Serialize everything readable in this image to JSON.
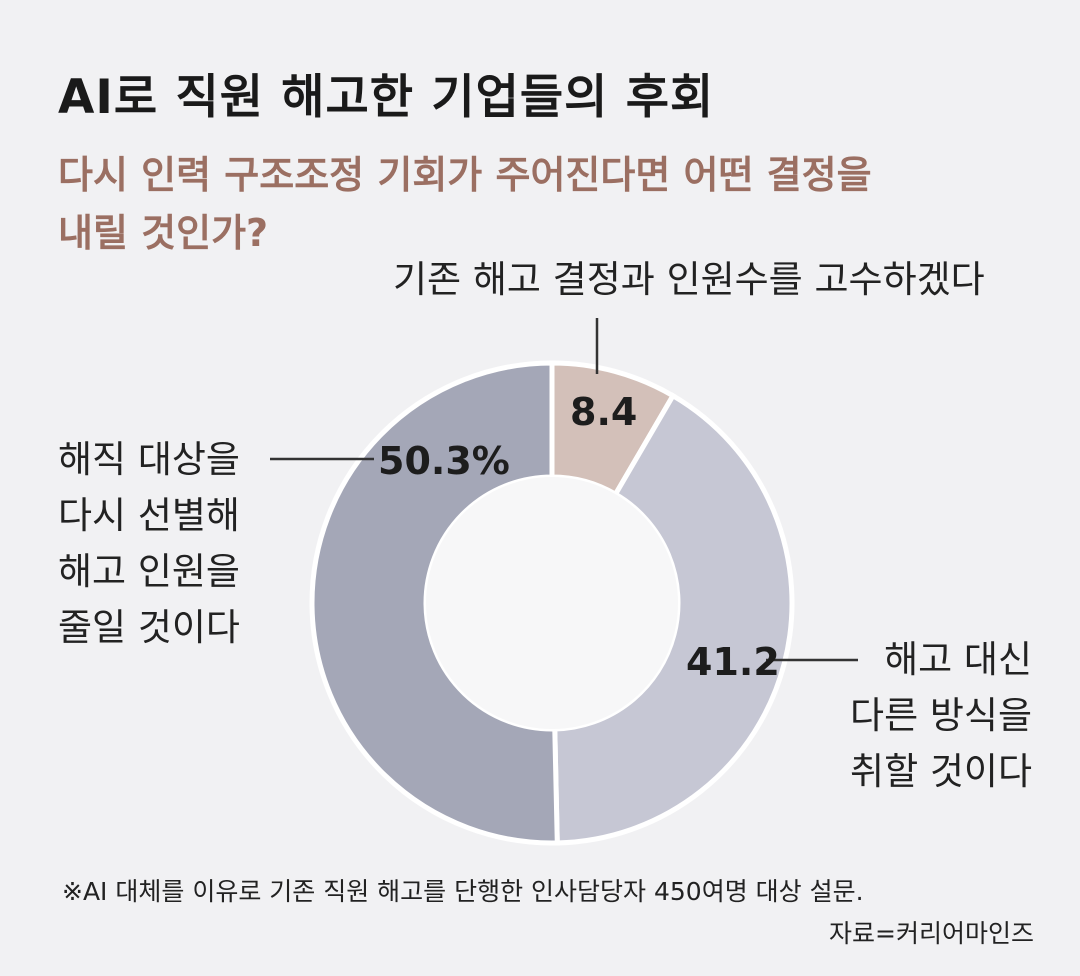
{
  "title": "AI로 직원 해고한 기업들의 후회",
  "subtitle": [
    "다시 인력 구조조정 기회가 주어진다면 어떤 결정을",
    "내릴 것인가?"
  ],
  "chart_data": {
    "type": "pie",
    "variant": "donut",
    "categories": [
      "기존 해고 결정과 인원수를 고수하겠다",
      "해고 대신 다른 방식을 취할 것이다",
      "해직 대상을 다시 선별해 해고 인원을 줄일 것이다"
    ],
    "values": [
      8.4,
      41.2,
      50.3
    ],
    "value_labels": [
      "8.4",
      "41.2",
      "50.3%"
    ],
    "unit": "%",
    "colors": [
      "#d3c0b9",
      "#c6c7d4",
      "#a4a7b7"
    ]
  },
  "labels": {
    "keep": [
      "기존 해고 결정과 인원수를 고수하겠다"
    ],
    "other": [
      "해고 대신",
      "다른 방식을",
      "취할 것이다"
    ],
    "reselect": [
      "해직 대상을",
      "다시 선별해",
      "해고 인원을",
      "줄일 것이다"
    ]
  },
  "footnote": "※AI 대체를 이유로 기존 직원 해고를 단행한 인사담당자 450여명 대상 설문.",
  "source": "자료=커리어마인즈"
}
